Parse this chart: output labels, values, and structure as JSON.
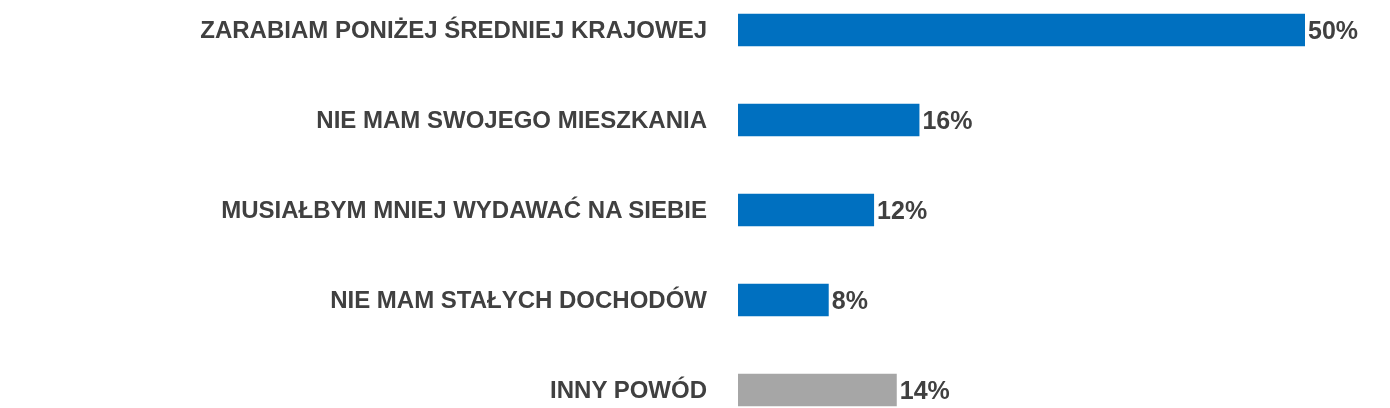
{
  "chart_data": {
    "type": "bar",
    "orientation": "horizontal",
    "categories": [
      "ZARABIAM PONIŻEJ ŚREDNIEJ KRAJOWEJ",
      "NIE MAM SWOJEGO MIESZKANIA",
      "MUSIAŁBYM MNIEJ WYDAWAĆ NA SIEBIE",
      "NIE MAM STAŁYCH DOCHODÓW",
      "INNY POWÓD"
    ],
    "values": [
      50,
      16,
      12,
      8,
      14
    ],
    "colors": [
      "#0070c0",
      "#0070c0",
      "#0070c0",
      "#0070c0",
      "#a6a6a6"
    ],
    "value_labels": [
      "50%",
      "16%",
      "12%",
      "8%",
      "14%"
    ],
    "xlim": [
      0,
      50
    ]
  }
}
